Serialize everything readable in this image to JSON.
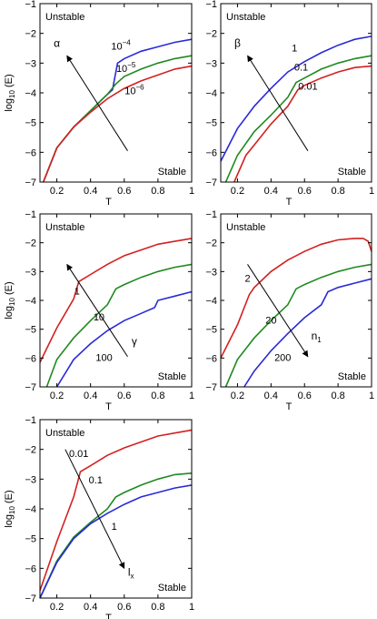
{
  "chart_data": [
    {
      "type": "line",
      "xlabel": "T",
      "ylabel": "log10(E)",
      "xlim": [
        0.1,
        1.0
      ],
      "ylim": [
        -7,
        -1
      ],
      "xticks": [
        "0.2",
        "0.4",
        "0.6",
        "0.8",
        "1"
      ],
      "yticks": [
        "-1",
        "-2",
        "-3",
        "-4",
        "-5",
        "-6",
        "-7"
      ],
      "region_labels": {
        "top": "Unstable",
        "bottom": "Stable"
      },
      "parameter": "α",
      "grid": false,
      "series": [
        {
          "name": "10^-4",
          "color": "#2a2ad8",
          "x": [
            0.12,
            0.2,
            0.3,
            0.4,
            0.5,
            0.53,
            0.56,
            0.6,
            0.7,
            0.8,
            0.9,
            1.0
          ],
          "y": [
            -7.0,
            -5.85,
            -5.15,
            -4.6,
            -4.05,
            -3.9,
            -3.0,
            -2.85,
            -2.6,
            -2.45,
            -2.3,
            -2.2
          ]
        },
        {
          "name": "10^-5",
          "color": "#1f8a1f",
          "x": [
            0.12,
            0.2,
            0.3,
            0.4,
            0.5,
            0.55,
            0.6,
            0.7,
            0.8,
            0.9,
            1.0
          ],
          "y": [
            -7.0,
            -5.85,
            -5.15,
            -4.6,
            -4.05,
            -3.7,
            -3.45,
            -3.2,
            -3.0,
            -2.85,
            -2.75
          ]
        },
        {
          "name": "10^-6",
          "color": "#d42020",
          "x": [
            0.12,
            0.2,
            0.3,
            0.4,
            0.5,
            0.6,
            0.7,
            0.8,
            0.9,
            1.0
          ],
          "y": [
            -7.0,
            -5.85,
            -5.15,
            -4.65,
            -4.2,
            -3.85,
            -3.6,
            -3.4,
            -3.2,
            -3.1
          ]
        }
      ]
    },
    {
      "type": "line",
      "xlabel": "T",
      "ylabel": "",
      "xlim": [
        0.1,
        1.0
      ],
      "ylim": [
        -7,
        -1
      ],
      "xticks": [
        "0.2",
        "0.4",
        "0.6",
        "0.8",
        "1"
      ],
      "yticks": [
        "-1",
        "-2",
        "-3",
        "-4",
        "-5",
        "-6",
        "-7"
      ],
      "region_labels": {
        "top": "Unstable",
        "bottom": "Stable"
      },
      "parameter": "β",
      "grid": false,
      "series": [
        {
          "name": "1",
          "color": "#2a2ad8",
          "x": [
            0.1,
            0.2,
            0.3,
            0.4,
            0.5,
            0.6,
            0.7,
            0.8,
            0.9,
            1.0
          ],
          "y": [
            -6.3,
            -5.2,
            -4.45,
            -3.85,
            -3.3,
            -2.95,
            -2.65,
            -2.4,
            -2.2,
            -2.1
          ]
        },
        {
          "name": "0.1",
          "color": "#1f8a1f",
          "x": [
            0.13,
            0.2,
            0.3,
            0.4,
            0.5,
            0.55,
            0.6,
            0.7,
            0.8,
            0.9,
            1.0
          ],
          "y": [
            -7.0,
            -6.1,
            -5.3,
            -4.75,
            -4.15,
            -3.65,
            -3.5,
            -3.2,
            -3.0,
            -2.85,
            -2.75
          ]
        },
        {
          "name": "0.01",
          "color": "#d42020",
          "x": [
            0.18,
            0.25,
            0.3,
            0.4,
            0.5,
            0.56,
            0.6,
            0.7,
            0.8,
            0.9,
            1.0
          ],
          "y": [
            -7.0,
            -6.1,
            -5.75,
            -5.05,
            -4.45,
            -3.9,
            -3.75,
            -3.5,
            -3.3,
            -3.15,
            -3.1
          ]
        }
      ]
    },
    {
      "type": "line",
      "xlabel": "T",
      "ylabel": "log10(E)",
      "xlim": [
        0.1,
        1.0
      ],
      "ylim": [
        -7,
        -1
      ],
      "xticks": [
        "0.2",
        "0.4",
        "0.6",
        "0.8",
        "1"
      ],
      "yticks": [
        "-1",
        "-2",
        "-3",
        "-4",
        "-5",
        "-6",
        "-7"
      ],
      "region_labels": {
        "top": "Unstable",
        "bottom": "Stable"
      },
      "parameter": "γ",
      "grid": false,
      "series": [
        {
          "name": "1",
          "color": "#d42020",
          "x": [
            0.1,
            0.2,
            0.3,
            0.33,
            0.4,
            0.5,
            0.6,
            0.7,
            0.8,
            0.9,
            1.0
          ],
          "y": [
            -6.15,
            -4.95,
            -3.95,
            -3.35,
            -3.1,
            -2.75,
            -2.45,
            -2.25,
            -2.05,
            -1.95,
            -1.85
          ]
        },
        {
          "name": "10",
          "color": "#1f8a1f",
          "x": [
            0.14,
            0.2,
            0.3,
            0.4,
            0.5,
            0.55,
            0.6,
            0.7,
            0.8,
            0.9,
            1.0
          ],
          "y": [
            -7.0,
            -6.05,
            -5.3,
            -4.7,
            -4.15,
            -3.6,
            -3.45,
            -3.2,
            -3.0,
            -2.85,
            -2.75
          ]
        },
        {
          "name": "100",
          "color": "#2a2ad8",
          "x": [
            0.2,
            0.3,
            0.4,
            0.5,
            0.6,
            0.7,
            0.78,
            0.8,
            0.9,
            1.0
          ],
          "y": [
            -7.0,
            -6.05,
            -5.5,
            -5.05,
            -4.7,
            -4.45,
            -4.25,
            -4.0,
            -3.85,
            -3.7
          ]
        }
      ]
    },
    {
      "type": "line",
      "xlabel": "T",
      "ylabel": "",
      "xlim": [
        0.1,
        1.0
      ],
      "ylim": [
        -7,
        -1
      ],
      "xticks": [
        "0.2",
        "0.4",
        "0.6",
        "0.8",
        "1"
      ],
      "yticks": [
        "-1",
        "-2",
        "-3",
        "-4",
        "-5",
        "-6",
        "-7"
      ],
      "region_labels": {
        "top": "Unstable",
        "bottom": "Stable"
      },
      "parameter": "n_1",
      "grid": false,
      "series": [
        {
          "name": "2",
          "color": "#d42020",
          "x": [
            0.1,
            0.2,
            0.27,
            0.3,
            0.4,
            0.5,
            0.6,
            0.7,
            0.8,
            0.9,
            0.95,
            0.98,
            1.0
          ],
          "y": [
            -6.0,
            -4.85,
            -3.8,
            -3.55,
            -3.0,
            -2.6,
            -2.3,
            -2.05,
            -1.9,
            -1.85,
            -1.85,
            -1.95,
            -2.3
          ]
        },
        {
          "name": "20",
          "color": "#1f8a1f",
          "x": [
            0.13,
            0.2,
            0.3,
            0.4,
            0.5,
            0.55,
            0.6,
            0.7,
            0.8,
            0.9,
            1.0
          ],
          "y": [
            -7.0,
            -6.05,
            -5.3,
            -4.7,
            -4.15,
            -3.6,
            -3.45,
            -3.2,
            -3.0,
            -2.85,
            -2.75
          ]
        },
        {
          "name": "200",
          "color": "#2a2ad8",
          "x": [
            0.24,
            0.3,
            0.4,
            0.5,
            0.6,
            0.7,
            0.74,
            0.8,
            0.9,
            1.0
          ],
          "y": [
            -7.0,
            -6.45,
            -5.75,
            -5.15,
            -4.6,
            -4.15,
            -3.7,
            -3.55,
            -3.4,
            -3.25
          ]
        }
      ]
    },
    {
      "type": "line",
      "xlabel": "T",
      "ylabel": "log10(E)",
      "xlim": [
        0.1,
        1.0
      ],
      "ylim": [
        -7,
        -1
      ],
      "xticks": [
        "0.2",
        "0.4",
        "0.6",
        "0.8",
        "1"
      ],
      "yticks": [
        "-1",
        "-2",
        "-3",
        "-4",
        "-5",
        "-6",
        "-7"
      ],
      "region_labels": {
        "top": "Unstable",
        "bottom": "Stable"
      },
      "parameter": "l_x",
      "grid": false,
      "series": [
        {
          "name": "0.01",
          "color": "#d42020",
          "x": [
            0.1,
            0.2,
            0.3,
            0.34,
            0.4,
            0.5,
            0.6,
            0.7,
            0.8,
            0.9,
            1.0
          ],
          "y": [
            -6.75,
            -5.1,
            -3.6,
            -2.75,
            -2.55,
            -2.2,
            -1.95,
            -1.75,
            -1.55,
            -1.45,
            -1.35
          ]
        },
        {
          "name": "0.1",
          "color": "#1f8a1f",
          "x": [
            0.1,
            0.2,
            0.3,
            0.4,
            0.5,
            0.55,
            0.6,
            0.7,
            0.8,
            0.9,
            1.0
          ],
          "y": [
            -7.0,
            -5.75,
            -4.95,
            -4.45,
            -4.0,
            -3.6,
            -3.45,
            -3.2,
            -3.0,
            -2.85,
            -2.8
          ]
        },
        {
          "name": "1",
          "color": "#2a2ad8",
          "x": [
            0.1,
            0.2,
            0.3,
            0.4,
            0.5,
            0.6,
            0.7,
            0.8,
            0.9,
            1.0
          ],
          "y": [
            -7.0,
            -5.8,
            -5.0,
            -4.5,
            -4.15,
            -3.85,
            -3.6,
            -3.45,
            -3.3,
            -3.2
          ]
        }
      ]
    }
  ]
}
